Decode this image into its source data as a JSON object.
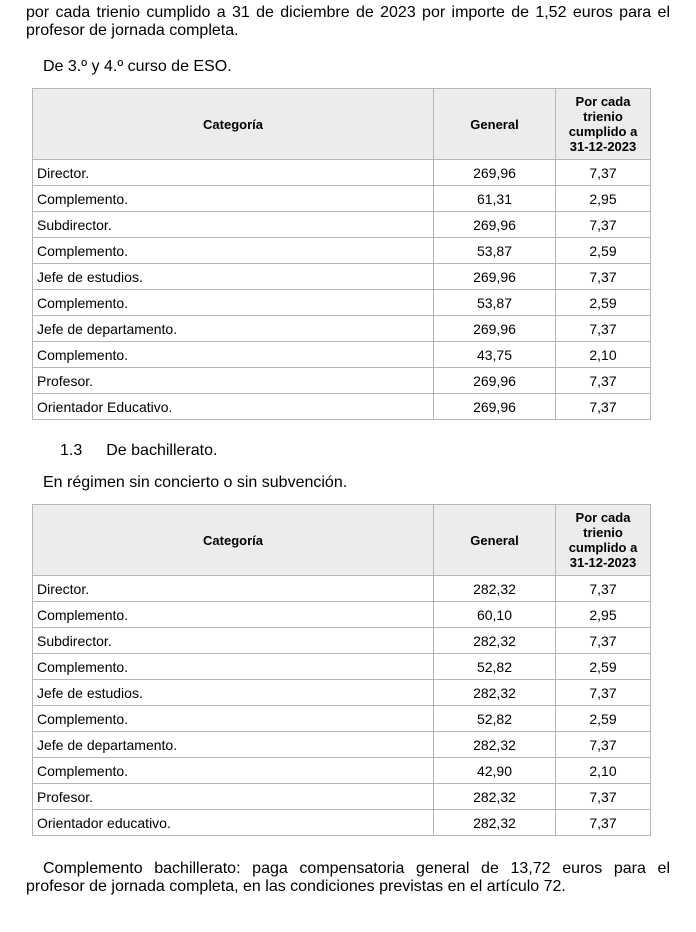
{
  "document": {
    "intro_paragraph": {
      "line1": "por cada trienio cumplido a 31 de diciembre de 2023 por importe de 1,52 euros para el",
      "line2": "profesor de jornada completa."
    },
    "eso_intro": "De 3.º y 4.º curso de ESO.",
    "section_heading": {
      "number": "1.3",
      "title": "De bachillerato."
    },
    "regimen_note": "En régimen sin concierto o sin subvención.",
    "closing_paragraph": {
      "line1": "Complemento bachillerato: paga compensatoria general de 13,72 euros para el",
      "line2": "profesor de jornada completa, en las condiciones previstas en el artículo 72."
    },
    "table_headers": {
      "categoria": "Categoría",
      "general": "General",
      "trienio": "Por cada trienio cumplido a 31-12-2023"
    },
    "eso_table": {
      "rows": [
        [
          "Director.",
          "269,96",
          "7,37"
        ],
        [
          "Complemento.",
          "61,31",
          "2,95"
        ],
        [
          "Subdirector.",
          "269,96",
          "7,37"
        ],
        [
          "Complemento.",
          "53,87",
          "2,59"
        ],
        [
          "Jefe de estudios.",
          "269,96",
          "7,37"
        ],
        [
          "Complemento.",
          "53,87",
          "2,59"
        ],
        [
          "Jefe de departamento.",
          "269,96",
          "7,37"
        ],
        [
          "Complemento.",
          "43,75",
          "2,10"
        ],
        [
          "Profesor.",
          "269,96",
          "7,37"
        ],
        [
          "Orientador Educativo.",
          "269,96",
          "7,37"
        ]
      ]
    },
    "bachillerato_table": {
      "rows": [
        [
          "Director.",
          "282,32",
          "7,37"
        ],
        [
          "Complemento.",
          "60,10",
          "2,95"
        ],
        [
          "Subdirector.",
          "282,32",
          "7,37"
        ],
        [
          "Complemento.",
          "52,82",
          "2,59"
        ],
        [
          "Jefe de estudios.",
          "282,32",
          "7,37"
        ],
        [
          "Complemento.",
          "52,82",
          "2,59"
        ],
        [
          "Jefe de departamento.",
          "282,32",
          "7,37"
        ],
        [
          "Complemento.",
          "42,90",
          "2,10"
        ],
        [
          "Profesor.",
          "282,32",
          "7,37"
        ],
        [
          "Orientador educativo.",
          "282,32",
          "7,37"
        ]
      ]
    },
    "colors": {
      "border": "#b5b5b5",
      "header_bg": "#ececec",
      "text": "#000000",
      "page_bg": "#ffffff"
    }
  }
}
